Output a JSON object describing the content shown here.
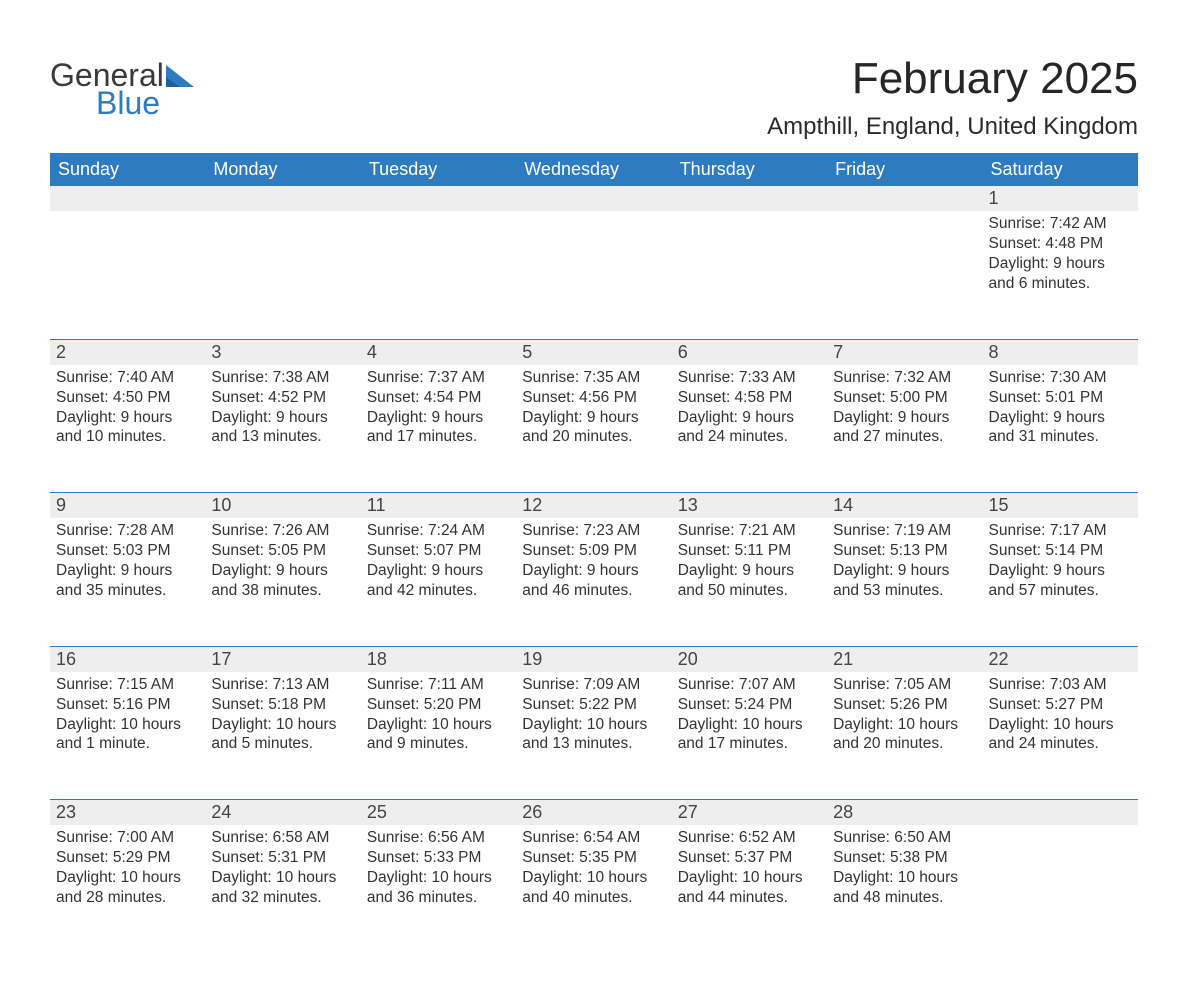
{
  "logo": {
    "general": "General",
    "blue": "Blue"
  },
  "title": "February 2025",
  "subtitle": "Ampthill, England, United Kingdom",
  "colors": {
    "header_bg": "#2f7bbf",
    "header_text": "#ffffff",
    "daynum_bg": "#eeeeee",
    "week_border": "#2f7bbf",
    "page_bg": "#ffffff",
    "text": "#333333"
  },
  "dayHeaders": [
    "Sunday",
    "Monday",
    "Tuesday",
    "Wednesday",
    "Thursday",
    "Friday",
    "Saturday"
  ],
  "weeks": [
    [
      null,
      null,
      null,
      null,
      null,
      null,
      {
        "n": "1",
        "sunrise": "Sunrise: 7:42 AM",
        "sunset": "Sunset: 4:48 PM",
        "daylight": "Daylight: 9 hours and 6 minutes."
      }
    ],
    [
      {
        "n": "2",
        "sunrise": "Sunrise: 7:40 AM",
        "sunset": "Sunset: 4:50 PM",
        "daylight": "Daylight: 9 hours and 10 minutes."
      },
      {
        "n": "3",
        "sunrise": "Sunrise: 7:38 AM",
        "sunset": "Sunset: 4:52 PM",
        "daylight": "Daylight: 9 hours and 13 minutes."
      },
      {
        "n": "4",
        "sunrise": "Sunrise: 7:37 AM",
        "sunset": "Sunset: 4:54 PM",
        "daylight": "Daylight: 9 hours and 17 minutes."
      },
      {
        "n": "5",
        "sunrise": "Sunrise: 7:35 AM",
        "sunset": "Sunset: 4:56 PM",
        "daylight": "Daylight: 9 hours and 20 minutes."
      },
      {
        "n": "6",
        "sunrise": "Sunrise: 7:33 AM",
        "sunset": "Sunset: 4:58 PM",
        "daylight": "Daylight: 9 hours and 24 minutes."
      },
      {
        "n": "7",
        "sunrise": "Sunrise: 7:32 AM",
        "sunset": "Sunset: 5:00 PM",
        "daylight": "Daylight: 9 hours and 27 minutes."
      },
      {
        "n": "8",
        "sunrise": "Sunrise: 7:30 AM",
        "sunset": "Sunset: 5:01 PM",
        "daylight": "Daylight: 9 hours and 31 minutes."
      }
    ],
    [
      {
        "n": "9",
        "sunrise": "Sunrise: 7:28 AM",
        "sunset": "Sunset: 5:03 PM",
        "daylight": "Daylight: 9 hours and 35 minutes."
      },
      {
        "n": "10",
        "sunrise": "Sunrise: 7:26 AM",
        "sunset": "Sunset: 5:05 PM",
        "daylight": "Daylight: 9 hours and 38 minutes."
      },
      {
        "n": "11",
        "sunrise": "Sunrise: 7:24 AM",
        "sunset": "Sunset: 5:07 PM",
        "daylight": "Daylight: 9 hours and 42 minutes."
      },
      {
        "n": "12",
        "sunrise": "Sunrise: 7:23 AM",
        "sunset": "Sunset: 5:09 PM",
        "daylight": "Daylight: 9 hours and 46 minutes."
      },
      {
        "n": "13",
        "sunrise": "Sunrise: 7:21 AM",
        "sunset": "Sunset: 5:11 PM",
        "daylight": "Daylight: 9 hours and 50 minutes."
      },
      {
        "n": "14",
        "sunrise": "Sunrise: 7:19 AM",
        "sunset": "Sunset: 5:13 PM",
        "daylight": "Daylight: 9 hours and 53 minutes."
      },
      {
        "n": "15",
        "sunrise": "Sunrise: 7:17 AM",
        "sunset": "Sunset: 5:14 PM",
        "daylight": "Daylight: 9 hours and 57 minutes."
      }
    ],
    [
      {
        "n": "16",
        "sunrise": "Sunrise: 7:15 AM",
        "sunset": "Sunset: 5:16 PM",
        "daylight": "Daylight: 10 hours and 1 minute."
      },
      {
        "n": "17",
        "sunrise": "Sunrise: 7:13 AM",
        "sunset": "Sunset: 5:18 PM",
        "daylight": "Daylight: 10 hours and 5 minutes."
      },
      {
        "n": "18",
        "sunrise": "Sunrise: 7:11 AM",
        "sunset": "Sunset: 5:20 PM",
        "daylight": "Daylight: 10 hours and 9 minutes."
      },
      {
        "n": "19",
        "sunrise": "Sunrise: 7:09 AM",
        "sunset": "Sunset: 5:22 PM",
        "daylight": "Daylight: 10 hours and 13 minutes."
      },
      {
        "n": "20",
        "sunrise": "Sunrise: 7:07 AM",
        "sunset": "Sunset: 5:24 PM",
        "daylight": "Daylight: 10 hours and 17 minutes."
      },
      {
        "n": "21",
        "sunrise": "Sunrise: 7:05 AM",
        "sunset": "Sunset: 5:26 PM",
        "daylight": "Daylight: 10 hours and 20 minutes."
      },
      {
        "n": "22",
        "sunrise": "Sunrise: 7:03 AM",
        "sunset": "Sunset: 5:27 PM",
        "daylight": "Daylight: 10 hours and 24 minutes."
      }
    ],
    [
      {
        "n": "23",
        "sunrise": "Sunrise: 7:00 AM",
        "sunset": "Sunset: 5:29 PM",
        "daylight": "Daylight: 10 hours and 28 minutes."
      },
      {
        "n": "24",
        "sunrise": "Sunrise: 6:58 AM",
        "sunset": "Sunset: 5:31 PM",
        "daylight": "Daylight: 10 hours and 32 minutes."
      },
      {
        "n": "25",
        "sunrise": "Sunrise: 6:56 AM",
        "sunset": "Sunset: 5:33 PM",
        "daylight": "Daylight: 10 hours and 36 minutes."
      },
      {
        "n": "26",
        "sunrise": "Sunrise: 6:54 AM",
        "sunset": "Sunset: 5:35 PM",
        "daylight": "Daylight: 10 hours and 40 minutes."
      },
      {
        "n": "27",
        "sunrise": "Sunrise: 6:52 AM",
        "sunset": "Sunset: 5:37 PM",
        "daylight": "Daylight: 10 hours and 44 minutes."
      },
      {
        "n": "28",
        "sunrise": "Sunrise: 6:50 AM",
        "sunset": "Sunset: 5:38 PM",
        "daylight": "Daylight: 10 hours and 48 minutes."
      },
      null
    ]
  ]
}
